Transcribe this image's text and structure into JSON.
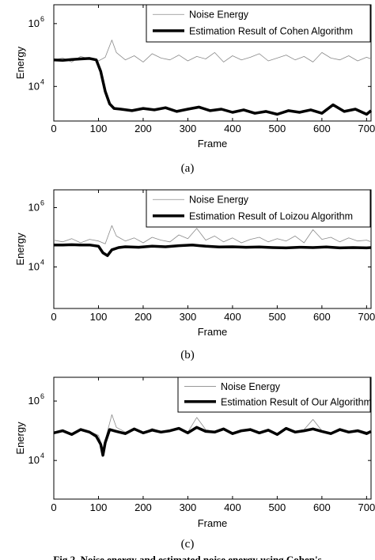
{
  "chart_data": [
    {
      "type": "line",
      "title": "",
      "xlabel": "Frame",
      "ylabel": "Energy",
      "xlim": [
        0,
        710
      ],
      "ylim_log10": [
        2.9,
        6.6
      ],
      "log_y": true,
      "x_ticks": [
        "0",
        "100",
        "200",
        "300",
        "400",
        "500",
        "600",
        "700"
      ],
      "y_ticks": [
        {
          "base": "10",
          "exp": "4"
        },
        {
          "base": "10",
          "exp": "6"
        }
      ],
      "legend": {
        "position": "top-right"
      },
      "caption": "(a)",
      "series": [
        {
          "name": "Noise Energy",
          "style": "thin-gray",
          "x": [
            0,
            20,
            40,
            60,
            80,
            100,
            115,
            130,
            140,
            160,
            180,
            200,
            220,
            240,
            260,
            280,
            300,
            320,
            340,
            360,
            380,
            400,
            420,
            440,
            460,
            480,
            500,
            520,
            540,
            560,
            580,
            600,
            620,
            640,
            660,
            680,
            700,
            710
          ],
          "values": [
            70000,
            80000,
            60000,
            90000,
            75000,
            65000,
            85000,
            300000,
            120000,
            70000,
            95000,
            60000,
            110000,
            80000,
            70000,
            100000,
            65000,
            90000,
            75000,
            120000,
            60000,
            95000,
            70000,
            85000,
            110000,
            65000,
            80000,
            100000,
            70000,
            90000,
            60000,
            120000,
            80000,
            70000,
            95000,
            65000,
            85000,
            75000
          ]
        },
        {
          "name": "Estimation Result of Cohen Algorithm",
          "style": "thick-black",
          "x": [
            0,
            20,
            40,
            60,
            80,
            95,
            105,
            115,
            125,
            135,
            150,
            175,
            200,
            225,
            250,
            275,
            300,
            325,
            350,
            375,
            400,
            425,
            450,
            475,
            500,
            525,
            550,
            575,
            600,
            625,
            650,
            675,
            700,
            710
          ],
          "values": [
            70000,
            68000,
            72000,
            75000,
            78000,
            70000,
            30000,
            7000,
            2800,
            2000,
            1900,
            1700,
            2000,
            1800,
            2100,
            1600,
            1900,
            2200,
            1700,
            1900,
            1500,
            1800,
            1400,
            1600,
            1300,
            1700,
            1500,
            1800,
            1400,
            2600,
            1600,
            1900,
            1300,
            1700
          ]
        }
      ]
    },
    {
      "type": "line",
      "title": "",
      "xlabel": "Frame",
      "ylabel": "Energy",
      "xlim": [
        0,
        710
      ],
      "ylim_log10": [
        2.6,
        6.6
      ],
      "log_y": true,
      "x_ticks": [
        "0",
        "100",
        "200",
        "300",
        "400",
        "500",
        "600",
        "700"
      ],
      "y_ticks": [
        {
          "base": "10",
          "exp": "4"
        },
        {
          "base": "10",
          "exp": "6"
        }
      ],
      "legend": {
        "position": "top-right"
      },
      "caption": "(b)",
      "series": [
        {
          "name": "Noise Energy",
          "style": "thin-gray",
          "x": [
            0,
            20,
            40,
            60,
            80,
            100,
            115,
            130,
            140,
            160,
            180,
            200,
            220,
            240,
            260,
            280,
            300,
            320,
            340,
            360,
            380,
            400,
            420,
            440,
            460,
            480,
            500,
            520,
            540,
            560,
            580,
            600,
            620,
            640,
            660,
            680,
            700,
            710
          ],
          "values": [
            80000,
            70000,
            90000,
            65000,
            85000,
            75000,
            60000,
            250000,
            110000,
            75000,
            95000,
            65000,
            100000,
            80000,
            70000,
            120000,
            90000,
            200000,
            80000,
            110000,
            70000,
            95000,
            65000,
            85000,
            100000,
            70000,
            90000,
            75000,
            110000,
            65000,
            180000,
            85000,
            100000,
            70000,
            95000,
            75000,
            80000,
            70000
          ]
        },
        {
          "name": "Estimation Result of Loizou Algorithm",
          "style": "thick-black",
          "x": [
            0,
            20,
            40,
            60,
            80,
            100,
            110,
            120,
            130,
            145,
            160,
            190,
            220,
            250,
            280,
            310,
            340,
            370,
            400,
            430,
            460,
            490,
            520,
            550,
            580,
            610,
            640,
            670,
            700,
            710
          ],
          "values": [
            55000,
            55000,
            56000,
            55000,
            55000,
            50000,
            30000,
            24000,
            38000,
            45000,
            48000,
            46000,
            50000,
            48000,
            52000,
            55000,
            50000,
            47000,
            48000,
            46000,
            47000,
            45000,
            44000,
            46000,
            45000,
            47000,
            44000,
            45000,
            44000,
            45000
          ]
        }
      ]
    },
    {
      "type": "line",
      "title": "",
      "xlabel": "Frame",
      "ylabel": "Energy",
      "xlim": [
        0,
        710
      ],
      "ylim_log10": [
        2.7,
        6.8
      ],
      "log_y": true,
      "x_ticks": [
        "0",
        "100",
        "200",
        "300",
        "400",
        "500",
        "600",
        "700"
      ],
      "y_ticks": [
        {
          "base": "10",
          "exp": "4"
        },
        {
          "base": "10",
          "exp": "6"
        }
      ],
      "legend": {
        "position": "top-right"
      },
      "caption": "(c)",
      "series": [
        {
          "name": "Noise Energy",
          "style": "thin-gray",
          "x": [
            0,
            20,
            40,
            60,
            80,
            100,
            110,
            130,
            140,
            160,
            180,
            200,
            220,
            240,
            260,
            280,
            300,
            320,
            340,
            360,
            380,
            400,
            420,
            440,
            460,
            480,
            500,
            520,
            540,
            560,
            580,
            600,
            620,
            640,
            660,
            680,
            700,
            710
          ],
          "values": [
            90000,
            110000,
            80000,
            120000,
            95000,
            70000,
            25000,
            350000,
            130000,
            90000,
            110000,
            85000,
            120000,
            95000,
            100000,
            130000,
            90000,
            280000,
            110000,
            95000,
            120000,
            85000,
            100000,
            120000,
            90000,
            110000,
            80000,
            130000,
            95000,
            110000,
            240000,
            100000,
            85000,
            120000,
            95000,
            110000,
            90000,
            100000
          ]
        },
        {
          "name": "Estimation Result of Our Algorithm",
          "style": "thick-black",
          "x": [
            0,
            20,
            40,
            60,
            80,
            95,
            105,
            110,
            115,
            125,
            140,
            160,
            180,
            200,
            220,
            240,
            260,
            280,
            300,
            320,
            340,
            360,
            380,
            400,
            420,
            440,
            460,
            480,
            500,
            520,
            540,
            560,
            580,
            600,
            620,
            640,
            660,
            680,
            700,
            710
          ],
          "values": [
            85000,
            100000,
            75000,
            110000,
            90000,
            65000,
            35000,
            15000,
            40000,
            110000,
            95000,
            80000,
            115000,
            85000,
            105000,
            90000,
            100000,
            120000,
            85000,
            130000,
            95000,
            90000,
            115000,
            80000,
            100000,
            110000,
            85000,
            105000,
            75000,
            120000,
            90000,
            100000,
            115000,
            95000,
            80000,
            110000,
            90000,
            100000,
            80000,
            95000
          ]
        }
      ]
    }
  ],
  "figure_caption": "Fig.2. Noise energy and estimated noise energy using Cohen's"
}
